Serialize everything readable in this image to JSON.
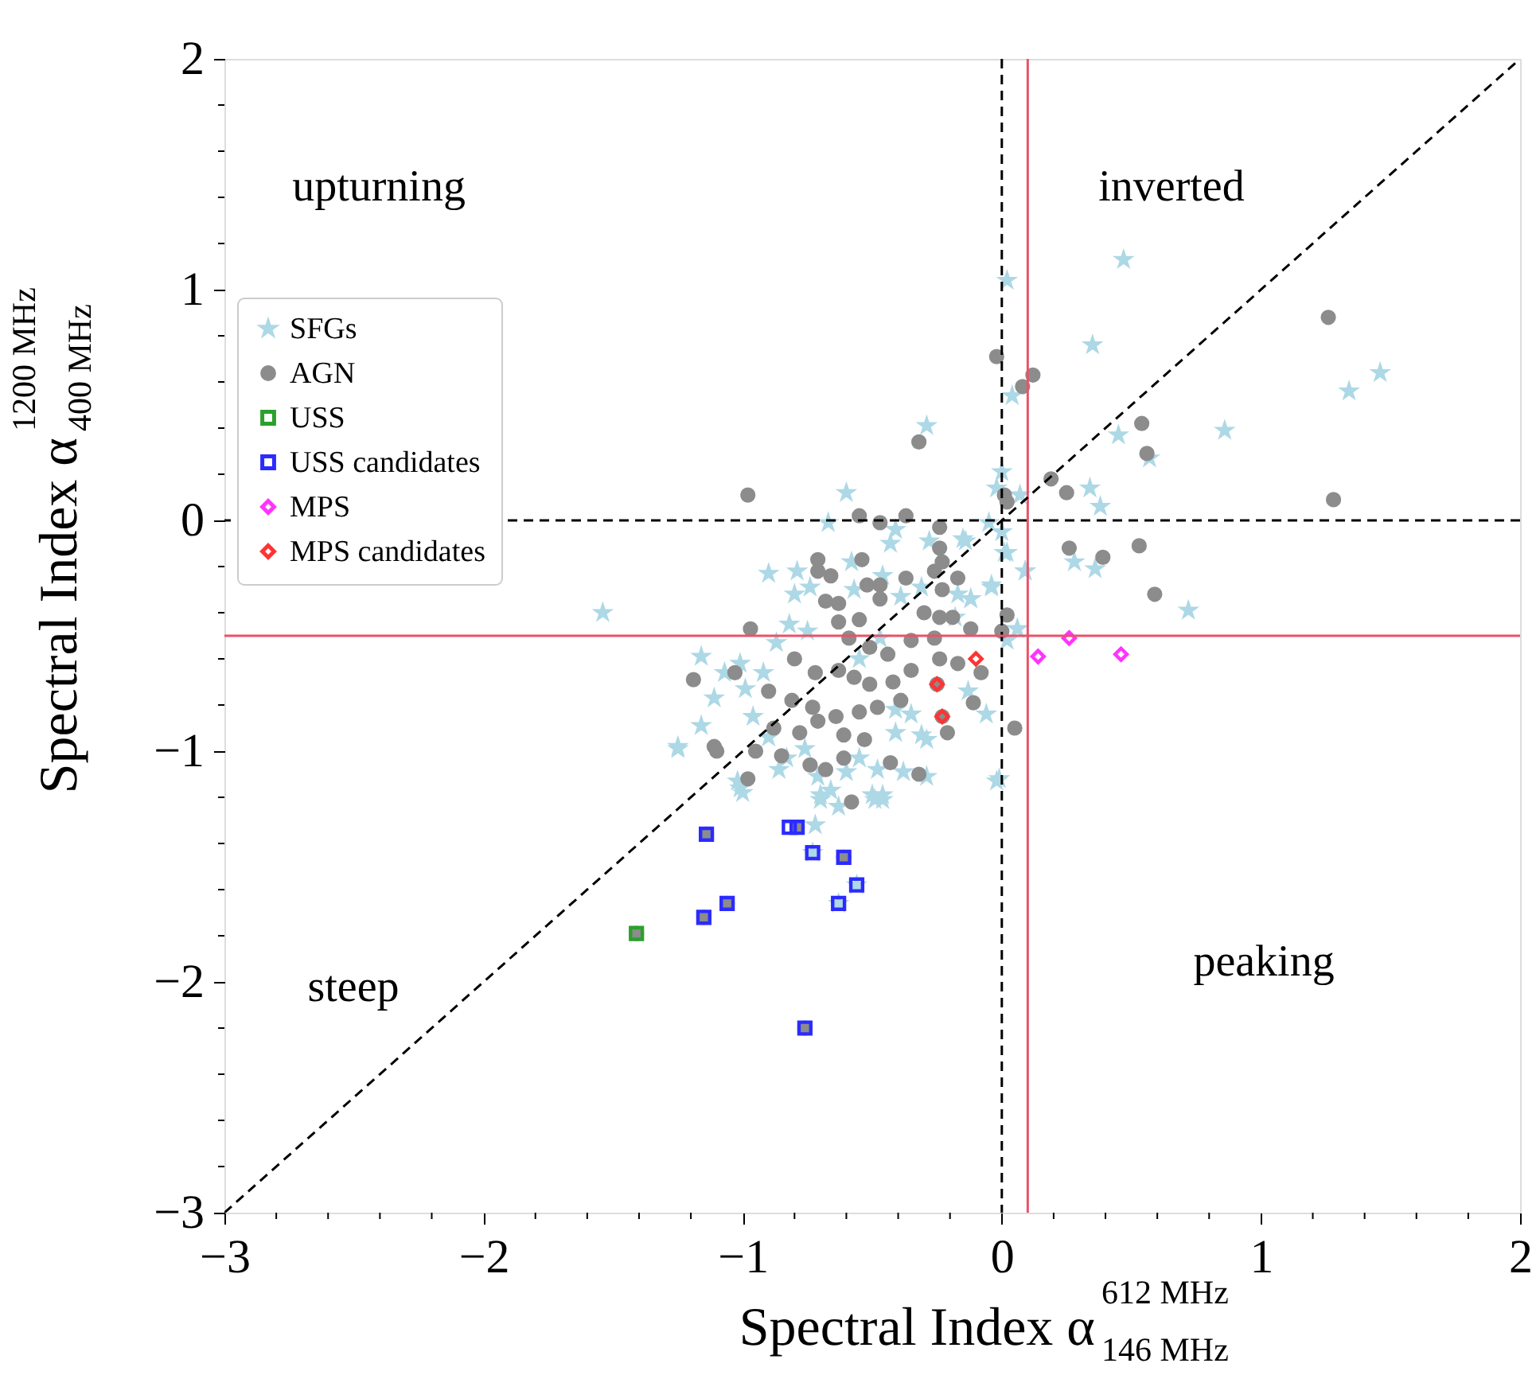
{
  "chart_data": {
    "type": "scatter",
    "xlabel": "Spectral Index α$^{612 MHz}$$_{146 MHz}$",
    "ylabel": "Spectral Index α$^{1200 MHz}$$_{400 MHz}$",
    "xlim": [
      -3,
      2
    ],
    "ylim": [
      -3,
      2
    ],
    "xticks": [
      -3,
      {
        "value": -2.8,
        "label": null
      },
      {
        "value": -2.6,
        "label": null
      },
      {
        "value": -2.4,
        "label": null
      },
      {
        "value": -2.2,
        "label": null
      },
      -2,
      {
        "value": -1.8,
        "label": null
      },
      {
        "value": -1.6,
        "label": null
      },
      {
        "value": -1.4,
        "label": null
      },
      {
        "value": -1.2,
        "label": null
      },
      -1,
      {
        "value": -0.8,
        "label": null
      },
      {
        "value": -0.6,
        "label": null
      },
      {
        "value": -0.4,
        "label": null
      },
      {
        "value": -0.2,
        "label": null
      },
      0,
      {
        "value": 0.2,
        "label": null
      },
      {
        "value": 0.4,
        "label": null
      },
      {
        "value": 0.6,
        "label": null
      },
      {
        "value": 0.8,
        "label": null
      },
      1,
      {
        "value": 1.2,
        "label": null
      },
      {
        "value": 1.4,
        "label": null
      },
      {
        "value": 1.6,
        "label": null
      },
      {
        "value": 1.8,
        "label": null
      },
      2
    ],
    "yticks": [
      -3,
      {
        "value": -2.8,
        "label": null
      },
      {
        "value": -2.6,
        "label": null
      },
      {
        "value": -2.4,
        "label": null
      },
      {
        "value": -2.2,
        "label": null
      },
      -2,
      {
        "value": -1.8,
        "label": null
      },
      {
        "value": -1.6,
        "label": null
      },
      {
        "value": -1.4,
        "label": null
      },
      {
        "value": -1.2,
        "label": null
      },
      -1,
      {
        "value": -0.8,
        "label": null
      },
      {
        "value": -0.6,
        "label": null
      },
      {
        "value": -0.4,
        "label": null
      },
      {
        "value": -0.2,
        "label": null
      },
      0,
      {
        "value": 0.2,
        "label": null
      },
      {
        "value": 0.4,
        "label": null
      },
      {
        "value": 0.6,
        "label": null
      },
      {
        "value": 0.8,
        "label": null
      },
      1,
      {
        "value": 1.2,
        "label": null
      },
      {
        "value": 1.4,
        "label": null
      },
      {
        "value": 1.6,
        "label": null
      },
      {
        "value": 1.8,
        "label": null
      },
      2
    ],
    "grid": false,
    "legend": "top left",
    "ref_lines": [
      {
        "axis": "x",
        "value": 0,
        "color": "#000000",
        "line_style": "dashed"
      },
      {
        "axis": "y",
        "value": 0,
        "color": "#000000",
        "line_style": "dashed"
      },
      {
        "axis": "x",
        "value": 0.1,
        "color": "#e8536b",
        "line_style": "solid"
      },
      {
        "axis": "y",
        "value": -0.5,
        "color": "#e8536b",
        "line_style": "solid"
      }
    ],
    "annotations": [
      "upturning",
      "inverted",
      "steep",
      "peaking"
    ],
    "series": [
      {
        "name": "SFGs",
        "marker": "star",
        "color": "#add8e6",
        "x": [
          0.47,
          0.02,
          0.35,
          1.46,
          1.34,
          0.04,
          0.86,
          0.45,
          0.57,
          0.0,
          0.34,
          0.07,
          0.38,
          -0.02,
          -0.05,
          0.0,
          -0.15,
          0.02,
          0.28,
          0.36,
          0.09,
          -0.04,
          0.72,
          -0.12,
          0.06,
          -0.67,
          -0.6,
          -0.41,
          -0.43,
          -0.28,
          -0.14,
          -0.9,
          -0.79,
          -0.8,
          -0.74,
          -0.58,
          -0.57,
          -0.46,
          -0.39,
          -0.31,
          -0.17,
          -0.12,
          -0.04,
          0.01,
          -0.82,
          -0.75,
          -0.87,
          -0.92,
          -1.01,
          -1.16,
          -1.07,
          -0.99,
          -1.11,
          -0.96,
          -1.16,
          -1.25,
          -0.9,
          -0.83,
          -0.86,
          -0.76,
          -0.71,
          -0.6,
          -0.55,
          -0.48,
          -0.41,
          -0.35,
          -0.41,
          -0.31,
          -0.29,
          -0.38,
          -0.29,
          -0.13,
          -0.06,
          -0.01,
          -0.5,
          -0.46,
          -0.63,
          -0.7,
          -1.02,
          -1.0,
          0.02,
          0.09,
          0.06,
          -0.18,
          -0.55,
          -0.47,
          -1.01,
          -0.7,
          -0.66,
          -0.49,
          -0.46,
          -0.72,
          -0.02,
          -1.54,
          -1.25,
          -0.29,
          -0.73,
          -0.56,
          -0.63
        ],
        "values": [
          1.13,
          1.04,
          0.76,
          0.64,
          0.56,
          0.54,
          0.39,
          0.37,
          0.27,
          0.21,
          0.14,
          0.11,
          0.06,
          0.14,
          -0.01,
          -0.05,
          -0.08,
          -0.14,
          -0.18,
          -0.21,
          -0.22,
          -0.29,
          -0.39,
          -0.34,
          -0.47,
          -0.01,
          0.12,
          -0.04,
          -0.1,
          -0.09,
          -0.09,
          -0.23,
          -0.22,
          -0.32,
          -0.29,
          -0.18,
          -0.3,
          -0.24,
          -0.33,
          -0.29,
          -0.32,
          -0.34,
          -0.28,
          -0.14,
          -0.45,
          -0.48,
          -0.53,
          -0.66,
          -0.62,
          -0.59,
          -0.66,
          -0.73,
          -0.77,
          -0.85,
          -0.89,
          -0.98,
          -0.94,
          -1.03,
          -1.08,
          -0.99,
          -1.11,
          -1.09,
          -1.03,
          -1.08,
          -0.92,
          -0.84,
          -0.82,
          -0.93,
          -0.95,
          -1.09,
          -1.11,
          -0.74,
          -0.84,
          -1.12,
          -1.19,
          -1.21,
          -1.24,
          -1.19,
          -1.13,
          -1.18,
          -0.52,
          -0.22,
          -0.47,
          -0.42,
          -0.6,
          -0.51,
          -1.16,
          -1.21,
          -1.17,
          -1.21,
          -1.19,
          -1.32,
          -1.13,
          -0.4,
          -0.99,
          0.41,
          -1.44,
          -1.58,
          -1.66
        ]
      },
      {
        "name": "AGN",
        "marker": "circle",
        "color": "#8c8c8c",
        "x": [
          1.26,
          1.28,
          -0.02,
          0.08,
          0.12,
          0.54,
          0.56,
          0.19,
          0.25,
          0.01,
          0.02,
          0.26,
          0.39,
          0.53,
          0.59,
          0.02,
          -0.12,
          0.0,
          -0.17,
          -0.98,
          -0.55,
          -0.47,
          -0.37,
          -0.24,
          -0.24,
          -0.23,
          -0.71,
          -0.54,
          -0.71,
          -0.66,
          -0.37,
          -0.26,
          -0.52,
          -0.47,
          -0.23,
          -0.68,
          -0.63,
          -0.47,
          -0.3,
          -0.24,
          -0.19,
          -0.97,
          -0.63,
          -0.55,
          -0.59,
          -0.51,
          -0.44,
          -0.35,
          -0.26,
          -0.8,
          -0.72,
          -0.63,
          -0.57,
          -0.51,
          -0.42,
          -0.35,
          -0.24,
          -0.17,
          -0.08,
          -1.19,
          -1.03,
          -0.9,
          -0.81,
          -0.73,
          -0.64,
          -0.55,
          -0.48,
          -0.39,
          -0.11,
          0.05,
          -0.21,
          -0.88,
          -0.78,
          -0.71,
          -0.61,
          -0.53,
          -1.11,
          -1.1,
          -0.95,
          -0.85,
          -0.74,
          -0.68,
          -0.61,
          -0.43,
          -0.32,
          -0.98,
          -0.58,
          -0.32,
          -0.25,
          -0.23,
          -1.14,
          -0.79,
          -0.61,
          -1.06,
          -1.15,
          -0.76,
          -1.41
        ],
        "values": [
          0.88,
          0.09,
          0.71,
          0.58,
          0.63,
          0.42,
          0.29,
          0.18,
          0.12,
          0.11,
          0.08,
          -0.12,
          -0.16,
          -0.11,
          -0.32,
          -0.41,
          -0.47,
          -0.48,
          -0.25,
          0.11,
          0.02,
          -0.01,
          0.02,
          -0.03,
          -0.12,
          -0.18,
          -0.17,
          -0.17,
          -0.22,
          -0.24,
          -0.25,
          -0.22,
          -0.28,
          -0.28,
          -0.3,
          -0.35,
          -0.36,
          -0.34,
          -0.4,
          -0.42,
          -0.42,
          -0.47,
          -0.44,
          -0.43,
          -0.51,
          -0.55,
          -0.58,
          -0.52,
          -0.51,
          -0.6,
          -0.66,
          -0.65,
          -0.68,
          -0.71,
          -0.7,
          -0.65,
          -0.6,
          -0.62,
          -0.66,
          -0.69,
          -0.66,
          -0.74,
          -0.78,
          -0.81,
          -0.85,
          -0.83,
          -0.81,
          -0.78,
          -0.79,
          -0.9,
          -0.92,
          -0.9,
          -0.92,
          -0.87,
          -0.93,
          -0.95,
          -0.98,
          -1.0,
          -1.0,
          -1.02,
          -1.06,
          -1.08,
          -1.03,
          -1.05,
          -1.1,
          -1.12,
          -1.22,
          0.34,
          -0.71,
          -0.85,
          -1.36,
          -1.33,
          -1.46,
          -1.66,
          -1.72,
          -2.2,
          -1.79
        ]
      },
      {
        "name": "USS",
        "marker": "square",
        "color": "#2ca02c",
        "x": [
          -1.41
        ],
        "values": [
          -1.79
        ]
      },
      {
        "name": "USS candidates",
        "marker": "square",
        "color": "#2b2bff",
        "x": [
          -1.14,
          -0.82,
          -0.79,
          -0.73,
          -0.61,
          -0.56,
          -0.63,
          -1.06,
          -1.15,
          -0.76
        ],
        "values": [
          -1.36,
          -1.33,
          -1.33,
          -1.44,
          -1.46,
          -1.58,
          -1.66,
          -1.66,
          -1.72,
          -2.2
        ]
      },
      {
        "name": "MPS",
        "marker": "diamond",
        "color": "#ff33ff",
        "x": [
          0.14,
          0.26,
          0.46
        ],
        "values": [
          -0.59,
          -0.51,
          -0.58
        ]
      },
      {
        "name": "MPS candidates",
        "marker": "diamond",
        "color": "#ff3333",
        "x": [
          -0.25,
          -0.23,
          -0.1
        ],
        "values": [
          -0.71,
          -0.85,
          -0.6
        ]
      },
      {
        "type": "line",
        "color": "#000000",
        "line_style": "dashed",
        "x": [
          -3,
          2
        ],
        "values": [
          -3,
          2
        ]
      }
    ]
  }
}
